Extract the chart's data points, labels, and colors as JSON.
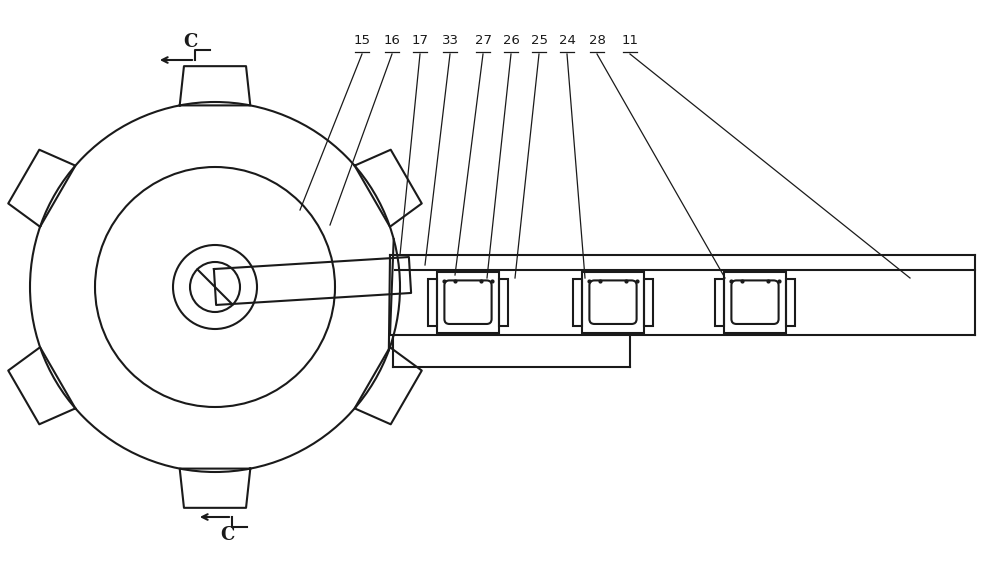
{
  "bg_color": "#ffffff",
  "line_color": "#1a1a1a",
  "lw": 1.5,
  "fig_width": 10.0,
  "fig_height": 5.74,
  "labels": [
    "15",
    "16",
    "17",
    "33",
    "27",
    "26",
    "25",
    "24",
    "28",
    "11"
  ]
}
